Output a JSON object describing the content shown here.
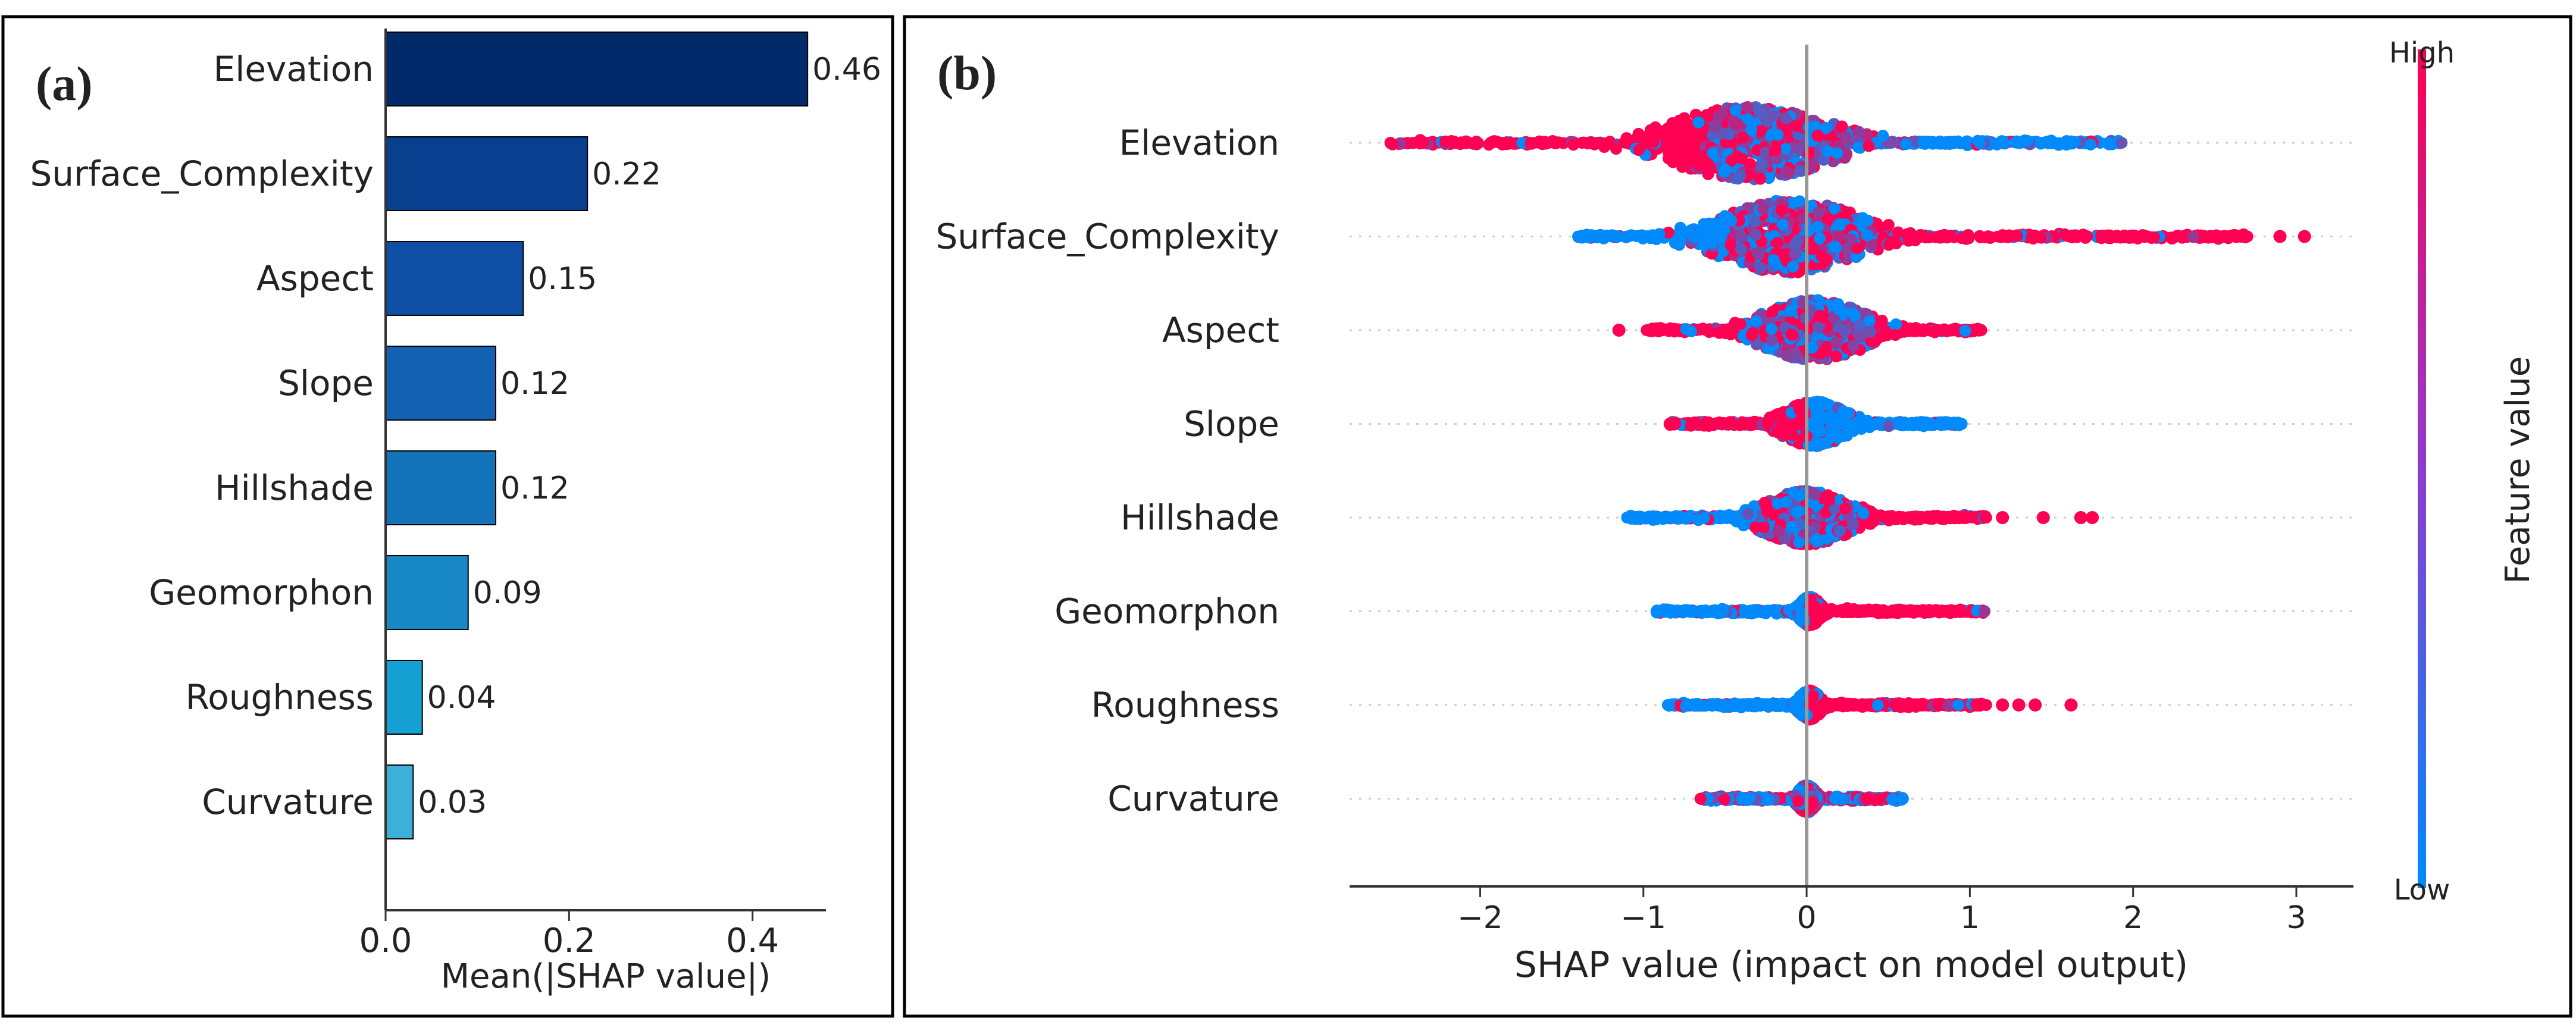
{
  "chart_data": [
    {
      "panel_label": "(a)",
      "type": "bar",
      "orientation": "horizontal",
      "categories": [
        "Elevation",
        "Surface_Complexity",
        "Aspect",
        "Slope",
        "Hillshade",
        "Geomorphon",
        "Roughness",
        "Curvature"
      ],
      "values": [
        0.46,
        0.22,
        0.15,
        0.12,
        0.12,
        0.09,
        0.04,
        0.03
      ],
      "value_labels": [
        "0.46",
        "0.22",
        "0.15",
        "0.12",
        "0.12",
        "0.09",
        "0.04",
        "0.03"
      ],
      "bar_colors": [
        "#022a6b",
        "#083f8f",
        "#0e4fa5",
        "#1361b2",
        "#1373b8",
        "#1889c6",
        "#14a0d2",
        "#3db0d9"
      ],
      "xlabel": "Mean(|SHAP value|)",
      "xlim": [
        0,
        0.48
      ],
      "xticks": [
        0.0,
        0.2,
        0.4
      ],
      "xtick_labels": [
        "0.0",
        "0.2",
        "0.4"
      ]
    },
    {
      "panel_label": "(b)",
      "type": "scatter",
      "subtype": "beeswarm",
      "features": [
        "Elevation",
        "Surface_Complexity",
        "Aspect",
        "Slope",
        "Hillshade",
        "Geomorphon",
        "Roughness",
        "Curvature"
      ],
      "xlabel": "SHAP value (impact on model output)",
      "xlim": [
        -2.8,
        3.35
      ],
      "xticks": [
        -2,
        -1,
        0,
        1,
        2,
        3
      ],
      "xtick_labels": [
        "−2",
        "−1",
        "0",
        "1",
        "2",
        "3"
      ],
      "colorbar": {
        "label": "Feature value",
        "high_label": "High",
        "low_label": "Low",
        "high_color": "#ff0052",
        "low_color": "#008afb"
      },
      "distributions": [
        {
          "feature": "Elevation",
          "min": -2.55,
          "max": 1.93,
          "mode": -0.35,
          "spread": 0.45,
          "extra_points": [],
          "segments": [
            {
              "from": -2.55,
              "to": -0.6,
              "color": "high"
            },
            {
              "from": -0.6,
              "to": 0.6,
              "color": "mixed"
            },
            {
              "from": 0.6,
              "to": 1.93,
              "color": "low"
            }
          ]
        },
        {
          "feature": "Surface_Complexity",
          "min": -1.4,
          "max": 2.7,
          "mode": -0.1,
          "spread": 0.4,
          "extra_points": [
            2.9,
            3.05
          ],
          "segments": [
            {
              "from": -1.4,
              "to": -0.5,
              "color": "low"
            },
            {
              "from": -0.5,
              "to": 0.5,
              "color": "mixed"
            },
            {
              "from": 0.5,
              "to": 2.7,
              "color": "high"
            }
          ]
        },
        {
          "feature": "Aspect",
          "min": -0.98,
          "max": 1.07,
          "mode": 0.05,
          "spread": 0.3,
          "extra_points": [
            -1.15
          ],
          "segments": [
            {
              "from": -0.98,
              "to": -0.4,
              "color": "high"
            },
            {
              "from": -0.4,
              "to": 0.4,
              "color": "mixed"
            },
            {
              "from": 0.4,
              "to": 1.07,
              "color": "high"
            }
          ]
        },
        {
          "feature": "Slope",
          "min": -0.84,
          "max": 0.95,
          "mode": 0.05,
          "spread": 0.18,
          "extra_points": [],
          "segments": [
            {
              "from": -0.84,
              "to": 0.0,
              "color": "high"
            },
            {
              "from": 0.0,
              "to": 0.95,
              "color": "low"
            }
          ]
        },
        {
          "feature": "Hillshade",
          "min": -1.1,
          "max": 1.1,
          "mode": 0.0,
          "spread": 0.25,
          "extra_points": [
            1.2,
            1.45,
            1.68,
            1.75
          ],
          "segments": [
            {
              "from": -1.1,
              "to": -0.3,
              "color": "low"
            },
            {
              "from": -0.3,
              "to": 0.3,
              "color": "mixed"
            },
            {
              "from": 0.3,
              "to": 1.1,
              "color": "high"
            }
          ]
        },
        {
          "feature": "Geomorphon",
          "min": -0.92,
          "max": 1.09,
          "mode": 0.02,
          "spread": 0.06,
          "extra_points": [],
          "segments": [
            {
              "from": -0.92,
              "to": 0.0,
              "color": "low"
            },
            {
              "from": 0.0,
              "to": 1.09,
              "color": "high"
            }
          ]
        },
        {
          "feature": "Roughness",
          "min": -0.85,
          "max": 1.1,
          "mode": 0.02,
          "spread": 0.06,
          "extra_points": [
            1.2,
            1.3,
            1.4,
            1.62
          ],
          "segments": [
            {
              "from": -0.85,
              "to": 0.0,
              "color": "low"
            },
            {
              "from": 0.0,
              "to": 1.1,
              "color": "high"
            }
          ]
        },
        {
          "feature": "Curvature",
          "min": -0.65,
          "max": 0.59,
          "mode": 0.0,
          "spread": 0.05,
          "extra_points": [],
          "segments": [
            {
              "from": -0.65,
              "to": 0.59,
              "color": "mixed"
            }
          ]
        }
      ]
    }
  ]
}
